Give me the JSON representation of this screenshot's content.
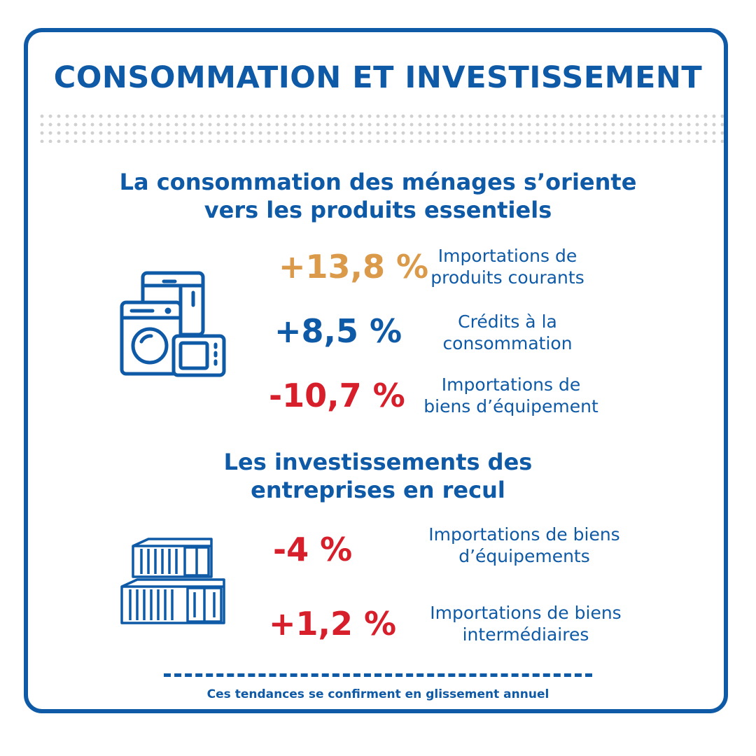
{
  "title": "CONSOMMATION ET INVESTISSEMENT",
  "section1": {
    "heading_line1": "La consommation des ménages s’oriente",
    "heading_line2": "vers les produits essentiels",
    "icon": "home-appliances-icon",
    "items": [
      {
        "value": "+13,8 %",
        "color": "#db9a4a",
        "line1": "Importations de",
        "line2": "produits courants"
      },
      {
        "value": "+8,5 %",
        "color": "#0f5aa6",
        "line1": "Crédits à la",
        "line2": "consommation"
      },
      {
        "value": "-10,7 %",
        "color": "#d71e2b",
        "line1": "Importations de",
        "line2": "biens d’équipement"
      }
    ]
  },
  "section2": {
    "heading_line1": "Les investissements des",
    "heading_line2": "entreprises en recul",
    "icon": "shipping-containers-icon",
    "items": [
      {
        "value": "-4 %",
        "color": "#d71e2b",
        "line1": "Importations de biens",
        "line2": "d’équipements"
      },
      {
        "value": "+1,2 %",
        "color": "#d71e2b",
        "line1": "Importations de biens",
        "line2": "intermédiaires"
      }
    ]
  },
  "footer": "Ces tendances se confirment en glissement annuel"
}
